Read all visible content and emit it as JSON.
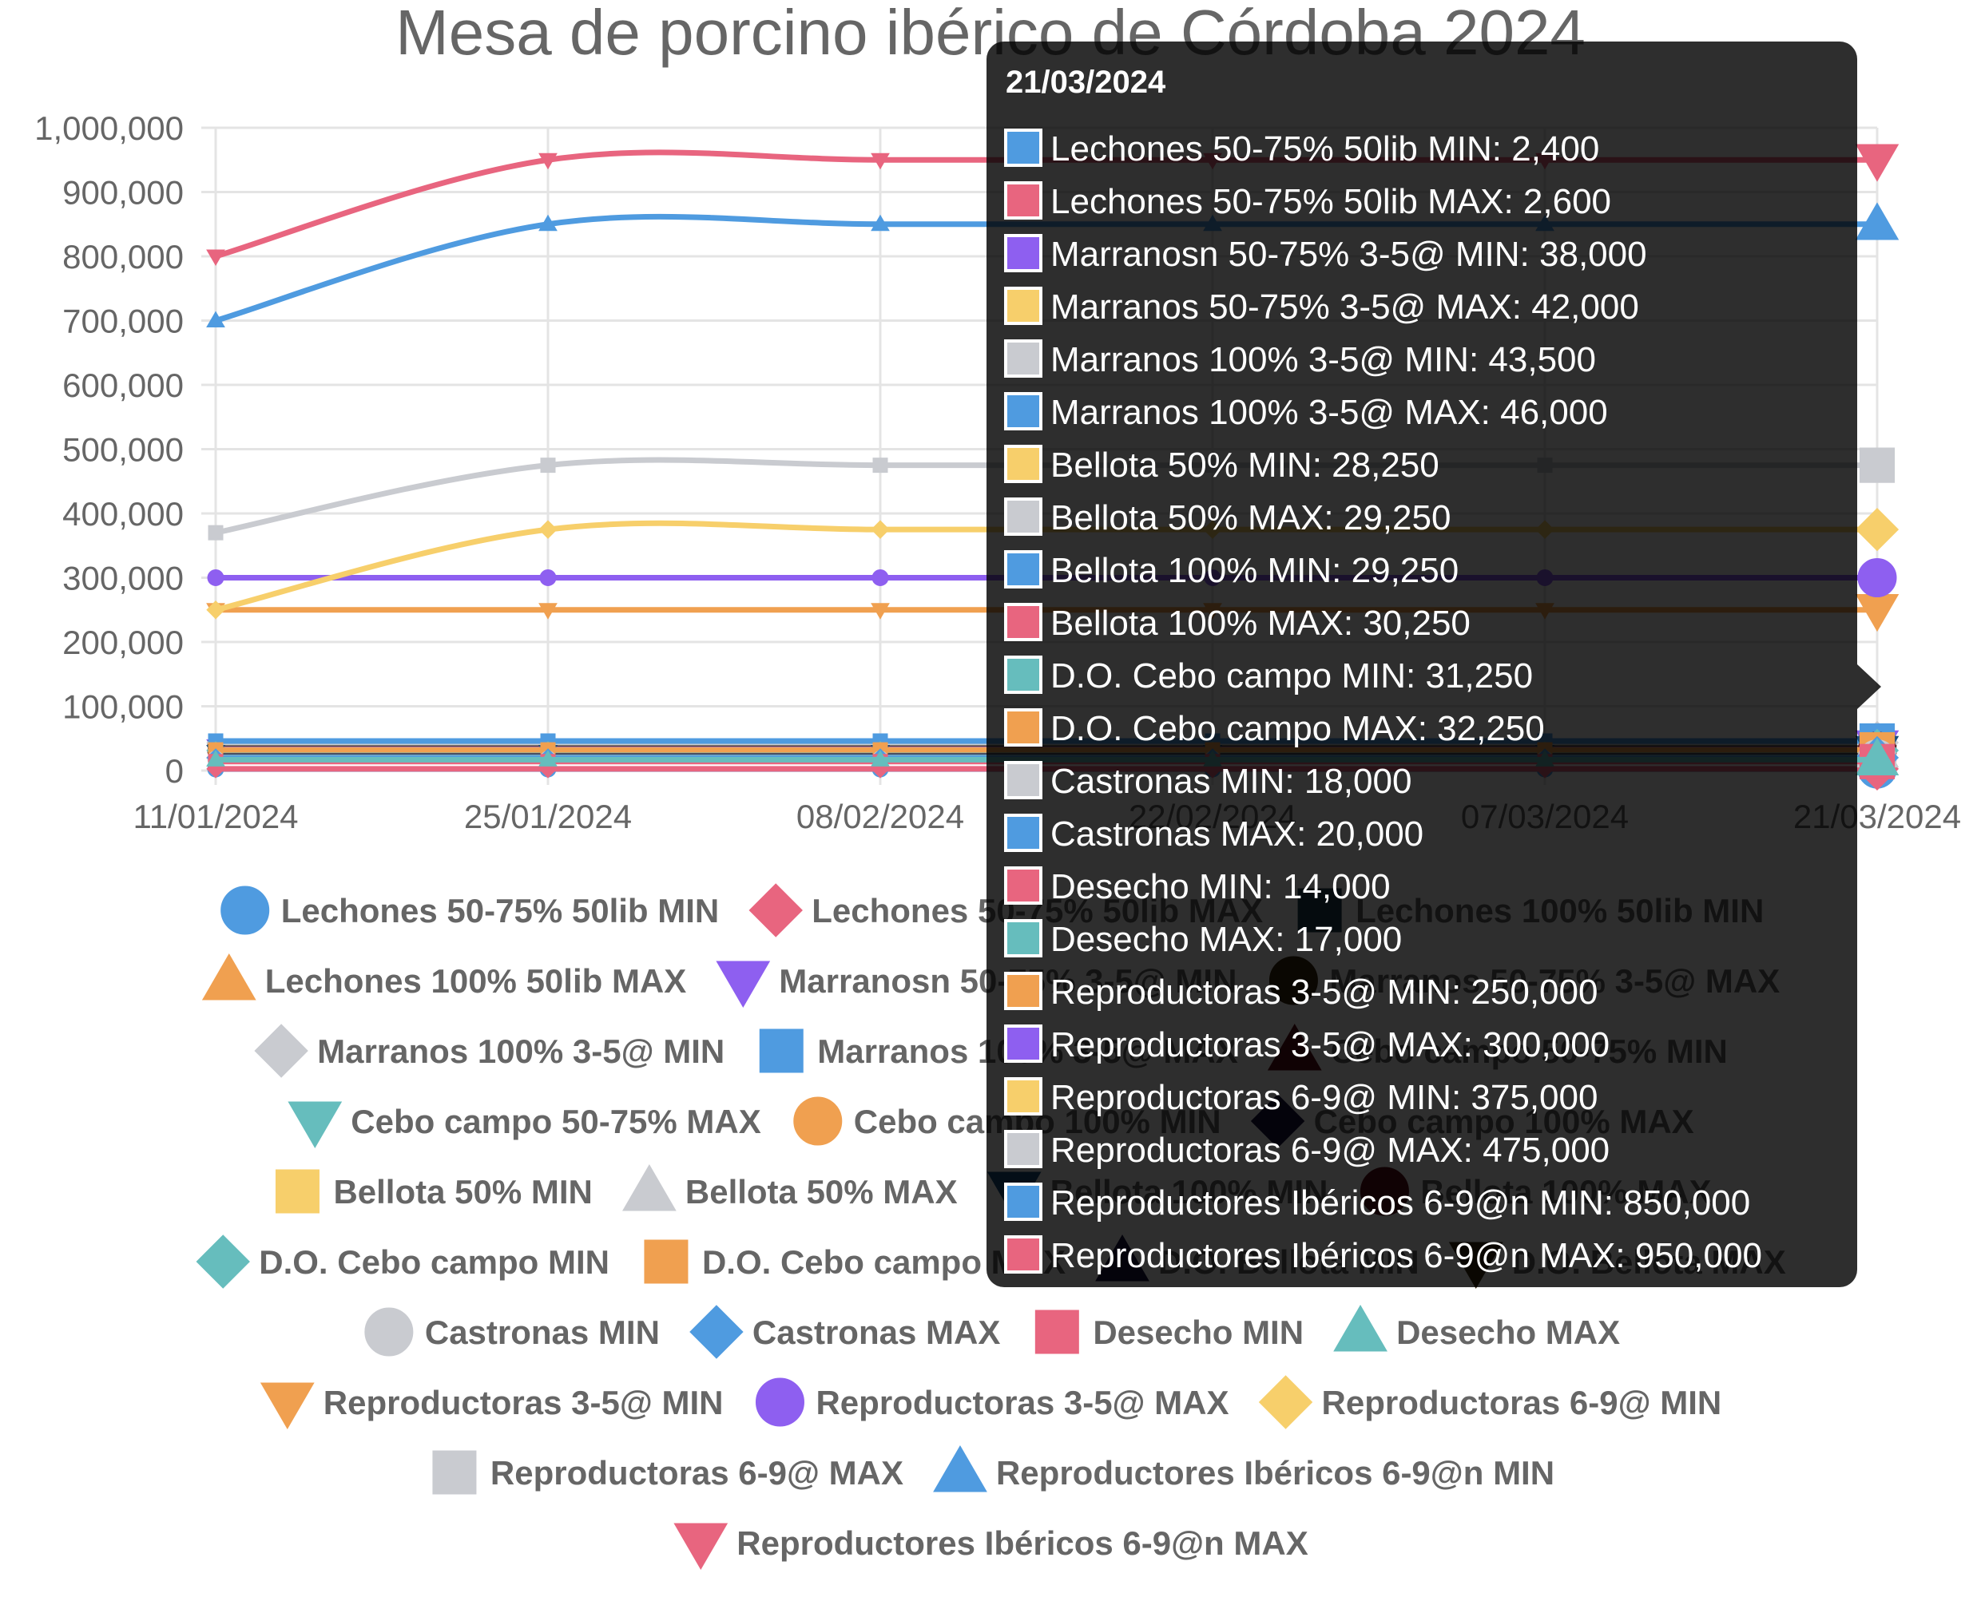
{
  "chart_data": {
    "type": "line",
    "title": "Mesa de porcino ibérico de Córdoba 2024",
    "x": [
      "11/01/2024",
      "25/01/2024",
      "08/02/2024",
      "22/02/2024",
      "07/03/2024",
      "21/03/2024"
    ],
    "ylim": [
      0,
      1000000
    ],
    "yticks": [
      "0",
      "100,000",
      "200,000",
      "300,000",
      "400,000",
      "500,000",
      "600,000",
      "700,000",
      "800,000",
      "900,000",
      "1,000,000"
    ],
    "grid": true,
    "legend_position": "bottom",
    "series": [
      {
        "name": "Lechones 50-75% 50lib MIN",
        "color": "#4f9be0",
        "marker": "circle",
        "values": [
          2400,
          2400,
          2400,
          2400,
          2400,
          2400
        ]
      },
      {
        "name": "Lechones 50-75% 50lib MAX",
        "color": "#e8657f",
        "marker": "diamond",
        "values": [
          2600,
          2600,
          2600,
          2600,
          2600,
          2600
        ]
      },
      {
        "name": "Lechones 100% 50lib MIN",
        "color": "#1c3d4d",
        "marker": "square",
        "values": [
          null,
          null,
          null,
          null,
          null,
          null
        ]
      },
      {
        "name": "Lechones 100% 50lib MAX",
        "color": "#f0a050",
        "marker": "triangle",
        "values": [
          null,
          null,
          null,
          null,
          null,
          null
        ]
      },
      {
        "name": "Marranosn  50-75% 3-5@ MIN",
        "color": "#8e5ff0",
        "marker": "triangle-down",
        "values": [
          38000,
          38000,
          38000,
          38000,
          38000,
          38000
        ]
      },
      {
        "name": "Marranos 50-75% 3-5@ MAX",
        "color": "#3a2a10",
        "marker": "circle",
        "values": [
          42000,
          42000,
          42000,
          42000,
          42000,
          42000
        ]
      },
      {
        "name": "Marranos 100% 3-5@ MIN",
        "color": "#c9cbd0",
        "marker": "diamond",
        "values": [
          43500,
          43500,
          43500,
          43500,
          43500,
          43500
        ]
      },
      {
        "name": "Marranos 100% 3-5@ MAX",
        "color": "#4f9be0",
        "marker": "square",
        "values": [
          46000,
          46000,
          46000,
          46000,
          46000,
          46000
        ]
      },
      {
        "name": "Cebo campo 50-75% MIN",
        "color": "#5a0f18",
        "marker": "triangle",
        "values": [
          null,
          null,
          null,
          null,
          null,
          null
        ]
      },
      {
        "name": "Cebo campo 50-75% MAX",
        "color": "#66bdbd",
        "marker": "triangle-down",
        "values": [
          null,
          null,
          null,
          null,
          null,
          null
        ]
      },
      {
        "name": "Cebo campo 100% MIN",
        "color": "#f0a050",
        "marker": "circle",
        "values": [
          null,
          null,
          null,
          null,
          null,
          null
        ]
      },
      {
        "name": "Cebo campo 100% MAX",
        "color": "#1a1440",
        "marker": "diamond",
        "values": [
          null,
          null,
          null,
          null,
          null,
          null
        ]
      },
      {
        "name": "Bellota 50% MIN",
        "color": "#f7cf6b",
        "marker": "square",
        "values": [
          28250,
          28250,
          28250,
          28250,
          28250,
          28250
        ]
      },
      {
        "name": "Bellota 50% MAX",
        "color": "#c9cbd0",
        "marker": "triangle",
        "values": [
          29250,
          29250,
          29250,
          29250,
          29250,
          29250
        ]
      },
      {
        "name": "Bellota 100% MIN",
        "color": "#1a4f80",
        "marker": "triangle-down",
        "values": [
          29250,
          29250,
          29250,
          29250,
          29250,
          29250
        ]
      },
      {
        "name": "Bellota 100% MAX",
        "color": "#5a0f18",
        "marker": "circle",
        "values": [
          30250,
          30250,
          30250,
          30250,
          30250,
          30250
        ]
      },
      {
        "name": "D.O. Cebo campo MIN",
        "color": "#66bdbd",
        "marker": "diamond",
        "values": [
          31250,
          31250,
          31250,
          31250,
          31250,
          31250
        ]
      },
      {
        "name": "D.O. Cebo campo MAX",
        "color": "#f0a050",
        "marker": "square",
        "values": [
          32250,
          32250,
          32250,
          32250,
          32250,
          32250
        ]
      },
      {
        "name": "D.O. Bellota MIN",
        "color": "#1a1440",
        "marker": "triangle",
        "values": [
          null,
          null,
          null,
          null,
          null,
          null
        ]
      },
      {
        "name": "D.O. Bellota MAX",
        "color": "#3a2a10",
        "marker": "triangle-down",
        "values": [
          null,
          null,
          null,
          null,
          null,
          null
        ]
      },
      {
        "name": "Castronas MIN",
        "color": "#c9cbd0",
        "marker": "circle",
        "values": [
          18000,
          18000,
          18000,
          18000,
          18000,
          18000
        ]
      },
      {
        "name": "Castronas MAX",
        "color": "#4f9be0",
        "marker": "diamond",
        "values": [
          20000,
          20000,
          20000,
          20000,
          20000,
          20000
        ]
      },
      {
        "name": "Desecho MIN",
        "color": "#e8657f",
        "marker": "square",
        "values": [
          14000,
          14000,
          14000,
          14000,
          14000,
          14000
        ]
      },
      {
        "name": "Desecho MAX",
        "color": "#66bdbd",
        "marker": "triangle",
        "values": [
          17000,
          17000,
          17000,
          17000,
          17000,
          17000
        ]
      },
      {
        "name": "Reproductoras 3-5@ MIN",
        "color": "#f0a050",
        "marker": "triangle-down",
        "values": [
          250000,
          250000,
          250000,
          250000,
          250000,
          250000
        ]
      },
      {
        "name": "Reproductoras 3-5@ MAX",
        "color": "#8e5ff0",
        "marker": "circle",
        "values": [
          300000,
          300000,
          300000,
          300000,
          300000,
          300000
        ]
      },
      {
        "name": "Reproductoras 6-9@ MIN",
        "color": "#f7cf6b",
        "marker": "diamond",
        "values": [
          250000,
          375000,
          375000,
          375000,
          375000,
          375000
        ]
      },
      {
        "name": "Reproductoras 6-9@ MAX",
        "color": "#c9cbd0",
        "marker": "square",
        "values": [
          370000,
          475000,
          475000,
          475000,
          475000,
          475000
        ]
      },
      {
        "name": "Reproductores Ibéricos 6-9@n  MIN",
        "color": "#4f9be0",
        "marker": "triangle",
        "values": [
          700000,
          850000,
          850000,
          850000,
          850000,
          850000
        ]
      },
      {
        "name": "Reproductores Ibéricos 6-9@n  MAX",
        "color": "#e8657f",
        "marker": "triangle-down",
        "values": [
          800000,
          950000,
          950000,
          950000,
          950000,
          950000
        ]
      }
    ],
    "tooltip": {
      "title": "21/03/2024",
      "items": [
        {
          "label": "Lechones 50-75% 50lib MIN: 2,400",
          "color": "#4f9be0"
        },
        {
          "label": "Lechones 50-75% 50lib MAX: 2,600",
          "color": "#e8657f"
        },
        {
          "label": "Marranosn  50-75% 3-5@ MIN: 38,000",
          "color": "#8e5ff0"
        },
        {
          "label": "Marranos 50-75% 3-5@ MAX: 42,000",
          "color": "#f7cf6b"
        },
        {
          "label": "Marranos 100% 3-5@ MIN: 43,500",
          "color": "#c9cbd0"
        },
        {
          "label": "Marranos 100% 3-5@ MAX: 46,000",
          "color": "#4f9be0"
        },
        {
          "label": "Bellota 50% MIN: 28,250",
          "color": "#f7cf6b"
        },
        {
          "label": "Bellota 50% MAX: 29,250",
          "color": "#c9cbd0"
        },
        {
          "label": "Bellota 100% MIN: 29,250",
          "color": "#4f9be0"
        },
        {
          "label": "Bellota 100% MAX: 30,250",
          "color": "#e8657f"
        },
        {
          "label": "D.O. Cebo campo MIN: 31,250",
          "color": "#66bdbd"
        },
        {
          "label": "D.O. Cebo campo MAX: 32,250",
          "color": "#f0a050"
        },
        {
          "label": "Castronas MIN: 18,000",
          "color": "#c9cbd0"
        },
        {
          "label": "Castronas MAX: 20,000",
          "color": "#4f9be0"
        },
        {
          "label": "Desecho MIN: 14,000",
          "color": "#e8657f"
        },
        {
          "label": "Desecho MAX: 17,000",
          "color": "#66bdbd"
        },
        {
          "label": "Reproductoras 3-5@ MIN: 250,000",
          "color": "#f0a050"
        },
        {
          "label": "Reproductoras 3-5@ MAX: 300,000",
          "color": "#8e5ff0"
        },
        {
          "label": "Reproductoras 6-9@ MIN: 375,000",
          "color": "#f7cf6b"
        },
        {
          "label": "Reproductoras 6-9@ MAX: 475,000",
          "color": "#c9cbd0"
        },
        {
          "label": "Reproductores Ibéricos 6-9@n  MIN: 850,000",
          "color": "#4f9be0"
        },
        {
          "label": "Reproductores Ibéricos 6-9@n  MAX: 950,000",
          "color": "#e8657f"
        }
      ]
    }
  }
}
